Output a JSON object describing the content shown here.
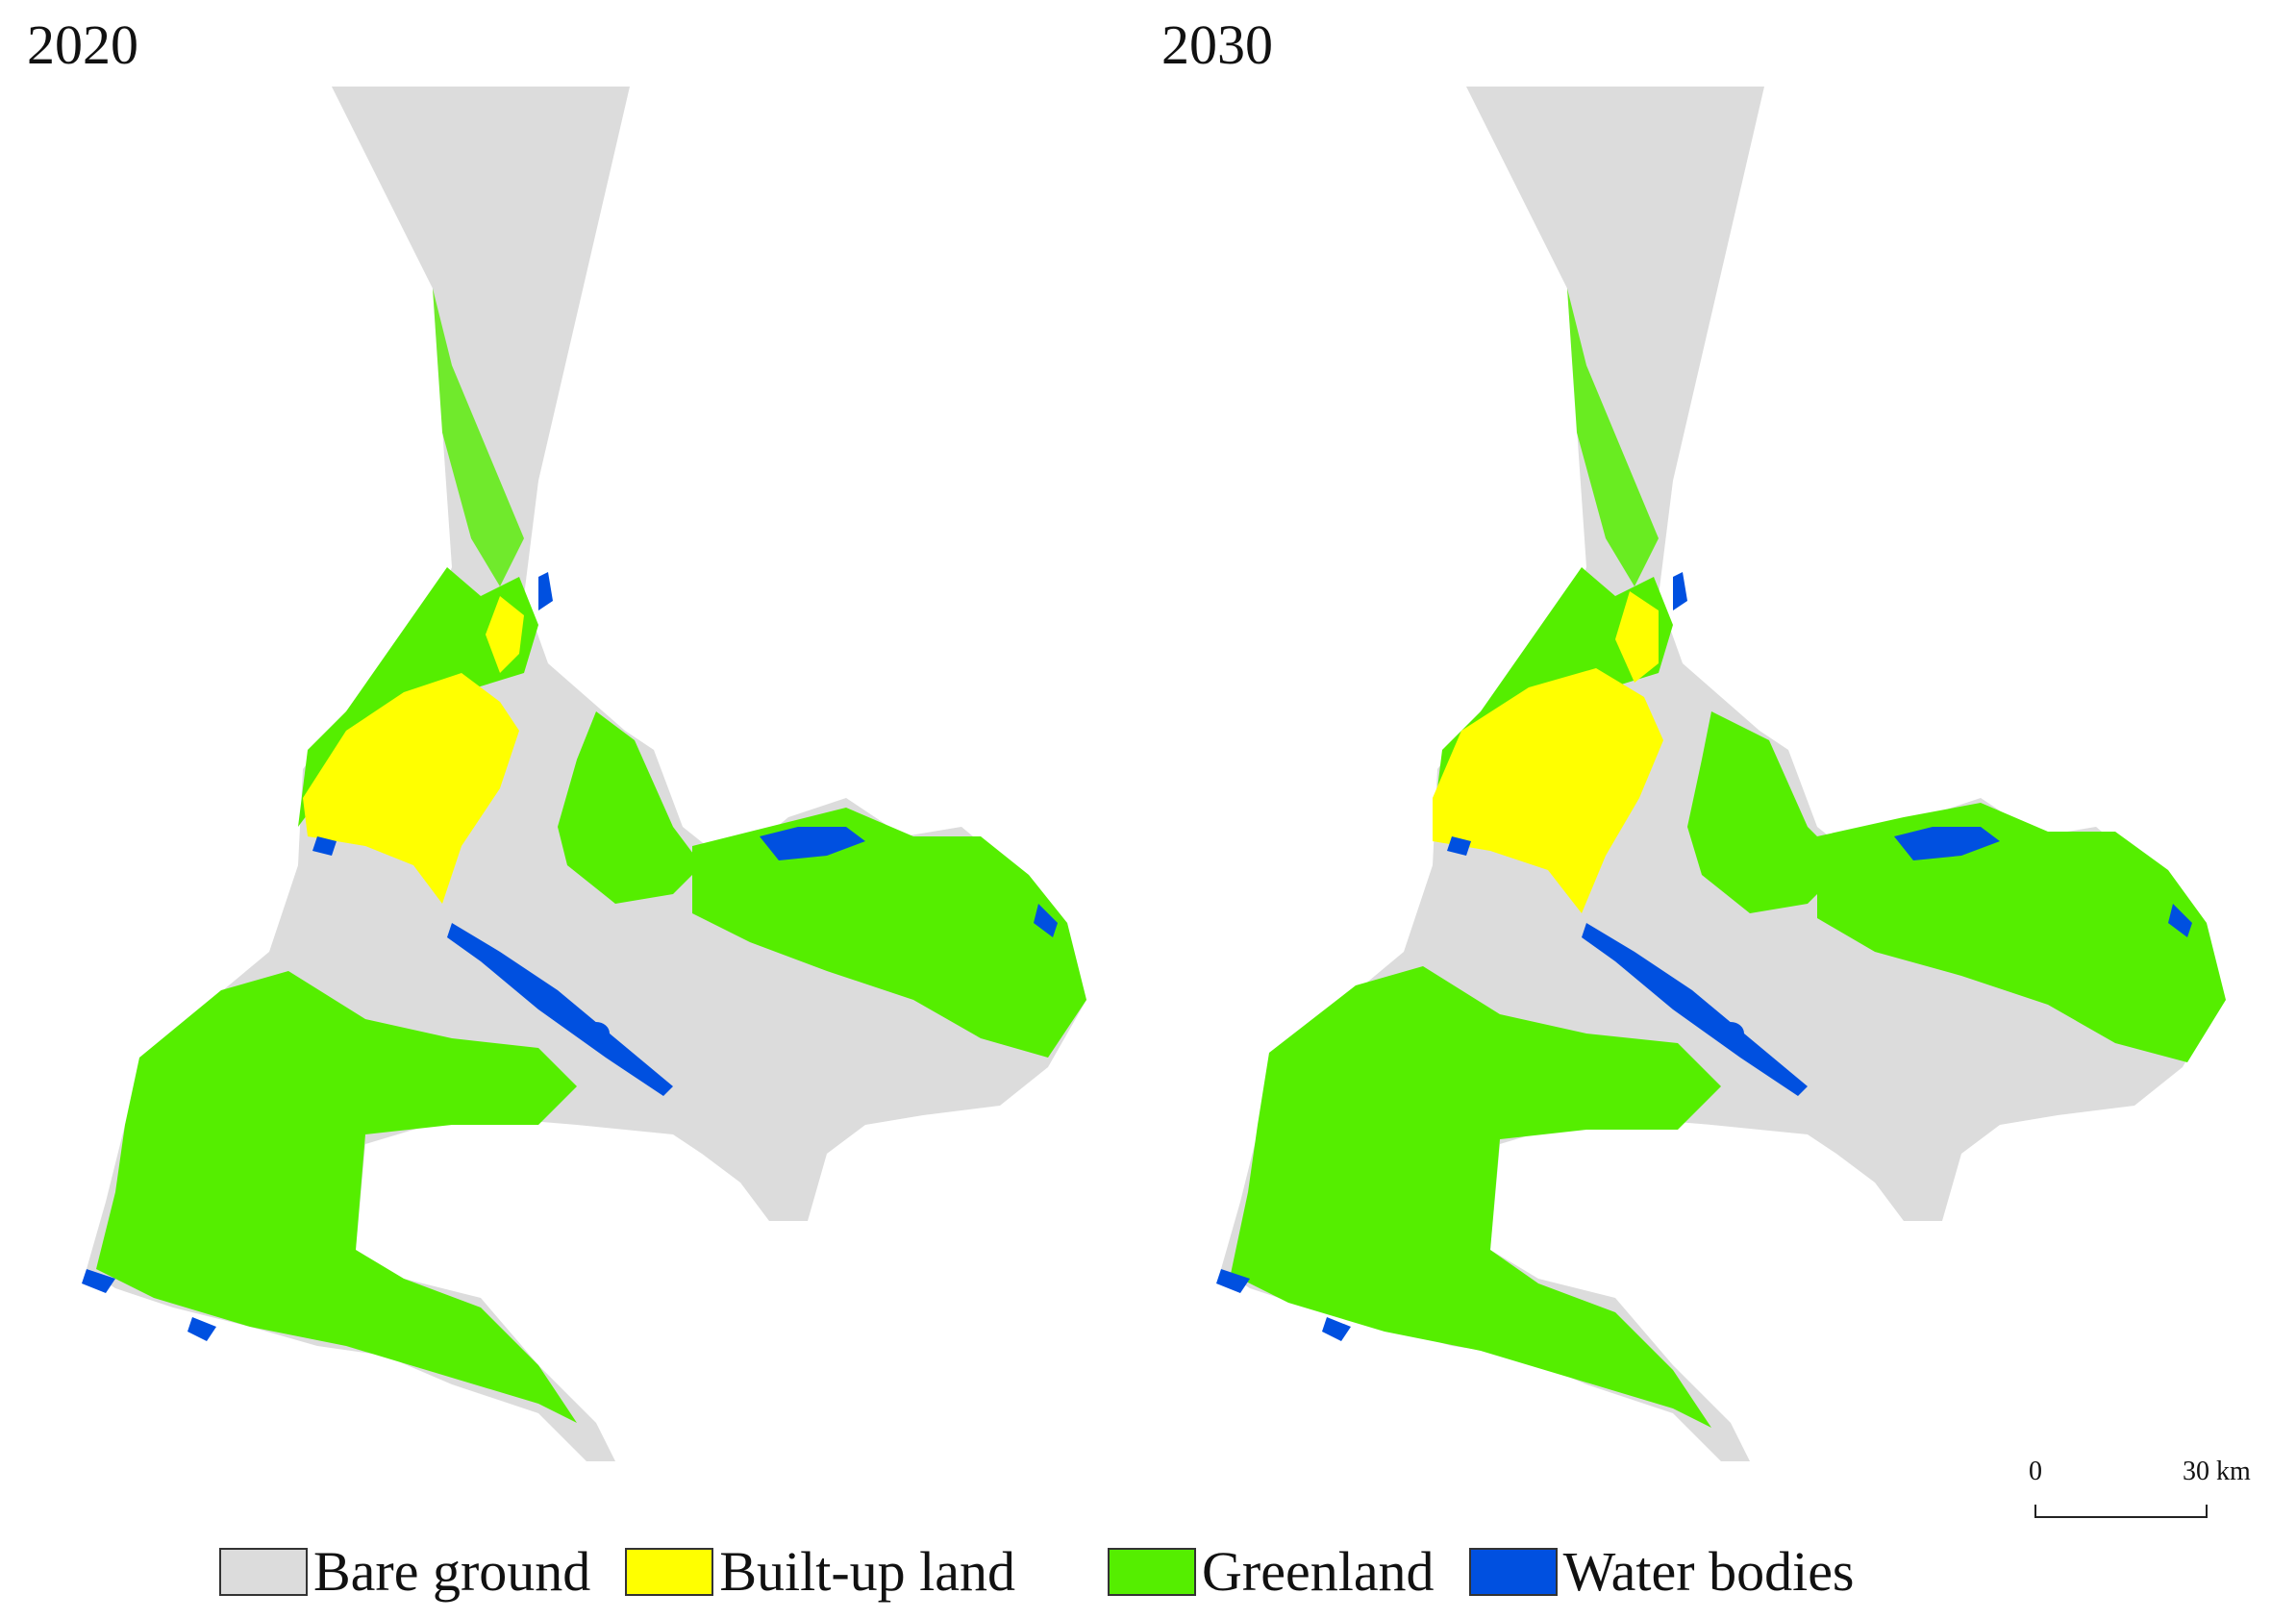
{
  "panels": [
    {
      "title": "2020"
    },
    {
      "title": "2030"
    }
  ],
  "scale_bar": {
    "zero_label": "0",
    "max_label": "30 km"
  },
  "legend": [
    {
      "label": "Bare ground",
      "color": "#dcdcdc"
    },
    {
      "label": "Built-up land",
      "color": "#ffff00"
    },
    {
      "label": "Greenland",
      "color": "#55ee00"
    },
    {
      "label": "Water bodies",
      "color": "#0050e0"
    }
  ],
  "colors": {
    "bare": "#dcdcdc",
    "built": "#ffff00",
    "green": "#55ee00",
    "water": "#0050e0"
  }
}
